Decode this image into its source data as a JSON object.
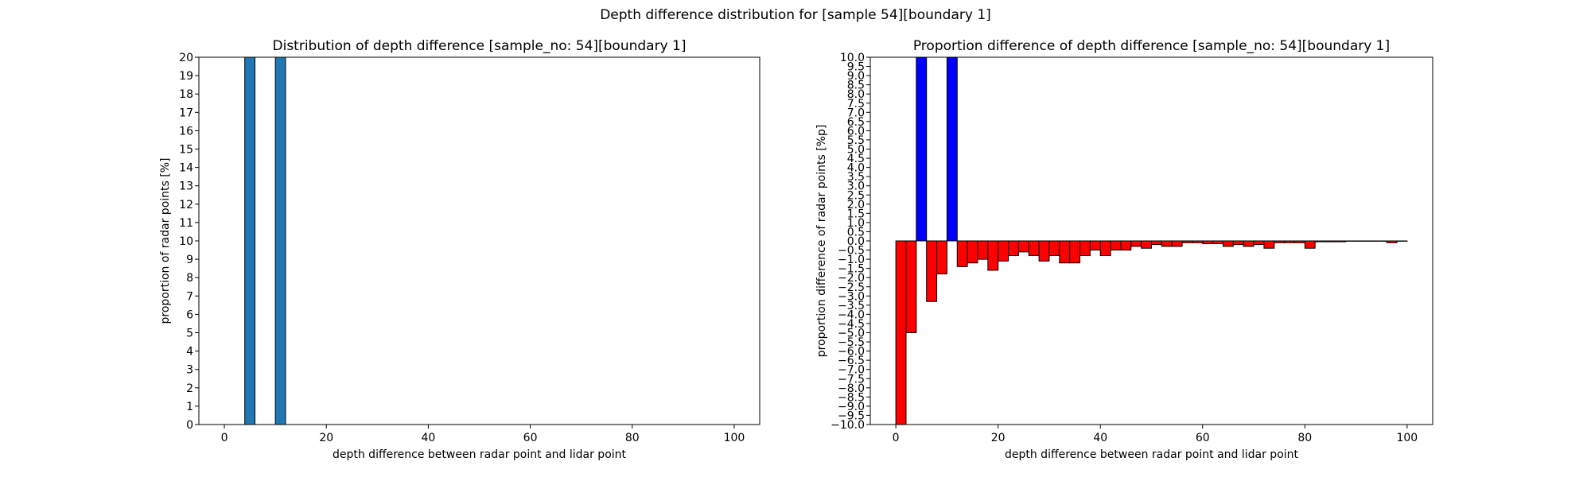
{
  "figure": {
    "suptitle": "Depth difference distribution for [sample 54][boundary 1]"
  },
  "chart_data": [
    {
      "type": "bar",
      "title": "Distribution of depth difference [sample_no: 54][boundary 1]",
      "xlabel": "depth difference between radar point and lidar point",
      "ylabel": "proportion of radar points [%]",
      "xlim": [
        -5,
        105
      ],
      "ylim": [
        0,
        20
      ],
      "xticks": [
        0,
        20,
        40,
        60,
        80,
        100
      ],
      "yticks": [
        0,
        1,
        2,
        3,
        4,
        5,
        6,
        7,
        8,
        9,
        10,
        11,
        12,
        13,
        14,
        15,
        16,
        17,
        18,
        19,
        20
      ],
      "ytick_labels": [
        "0",
        "1",
        "2",
        "3",
        "4",
        "5",
        "6",
        "7",
        "8",
        "9",
        "10",
        "11",
        "12",
        "13",
        "14",
        "15",
        "16",
        "17",
        "18",
        "19",
        "20"
      ],
      "bar_width": 2,
      "bar_color": "#1f77b4",
      "x": [
        5,
        11
      ],
      "values": [
        20,
        20
      ]
    },
    {
      "type": "bar",
      "title": "Proportion difference of depth difference [sample_no: 54][boundary 1]",
      "xlabel": "depth difference between radar point and lidar point",
      "ylabel": "proportion difference of radar points [%p]",
      "xlim": [
        -5,
        105
      ],
      "ylim": [
        -10,
        10
      ],
      "xticks": [
        0,
        20,
        40,
        60,
        80,
        100
      ],
      "yticks": [
        -10,
        -9.5,
        -9,
        -8.5,
        -8,
        -7.5,
        -7,
        -6.5,
        -6,
        -5.5,
        -5,
        -4.5,
        -4,
        -3.5,
        -3,
        -2.5,
        -2,
        -1.5,
        -1,
        -0.5,
        0,
        0.5,
        1,
        1.5,
        2,
        2.5,
        3,
        3.5,
        4,
        4.5,
        5,
        5.5,
        6,
        6.5,
        7,
        7.5,
        8,
        8.5,
        9,
        9.5,
        10
      ],
      "ytick_labels": [
        "−10.0",
        "−9.5",
        "−9.0",
        "−8.5",
        "−8.0",
        "−7.5",
        "−7.0",
        "−6.5",
        "−6.0",
        "−5.5",
        "−5.0",
        "−4.5",
        "−4.0",
        "−3.5",
        "−3.0",
        "−2.5",
        "−2.0",
        "−1.5",
        "−1.0",
        "−0.5",
        "0.0",
        "0.5",
        "1.0",
        "1.5",
        "2.0",
        "2.5",
        "3.0",
        "3.5",
        "4.0",
        "4.5",
        "5.0",
        "5.5",
        "6.0",
        "6.5",
        "7.0",
        "7.5",
        "8.0",
        "8.5",
        "9.0",
        "9.5",
        "10.0"
      ],
      "bar_width": 2,
      "positive_color": "#0000ff",
      "negative_color": "#ff0000",
      "x": [
        1,
        3,
        5,
        7,
        9,
        11,
        13,
        15,
        17,
        19,
        21,
        23,
        25,
        27,
        29,
        31,
        33,
        35,
        37,
        39,
        41,
        43,
        45,
        47,
        49,
        51,
        53,
        55,
        57,
        59,
        61,
        63,
        65,
        67,
        69,
        71,
        73,
        75,
        77,
        79,
        81,
        83,
        85,
        87,
        89,
        91,
        93,
        95,
        97,
        99
      ],
      "values": [
        -10,
        -5,
        10,
        -3.3,
        -1.8,
        10,
        -1.4,
        -1.2,
        -1.0,
        -1.6,
        -1.1,
        -0.8,
        -0.6,
        -0.8,
        -1.1,
        -0.8,
        -1.2,
        -1.2,
        -0.8,
        -0.5,
        -0.8,
        -0.5,
        -0.5,
        -0.3,
        -0.4,
        -0.2,
        -0.3,
        -0.3,
        -0.1,
        -0.1,
        -0.15,
        -0.15,
        -0.3,
        -0.2,
        -0.3,
        -0.2,
        -0.4,
        -0.1,
        -0.1,
        -0.1,
        -0.4,
        -0.05,
        -0.05,
        -0.05,
        -0.02,
        -0.02,
        -0.02,
        -0.02,
        -0.1,
        -0.02
      ]
    }
  ]
}
